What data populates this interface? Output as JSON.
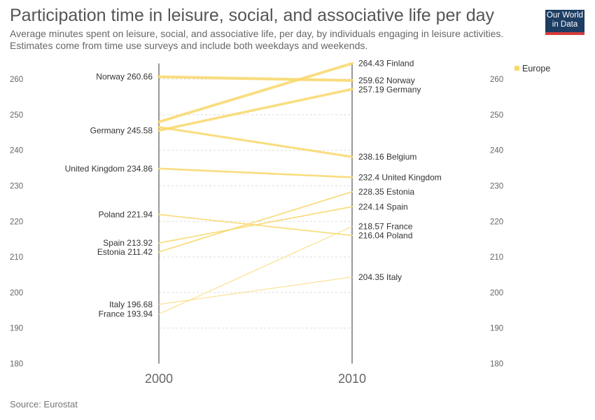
{
  "header": {
    "title": "Participation time in leisure, social, and associative life per day",
    "subtitle_line1": "Average minutes spent on leisure, social, and associative life, per day, by individuals engaging in leisure activities.",
    "subtitle_line2": "Estimates come from time use surveys and include both weekdays and weekends.",
    "logo_line1": "Our World",
    "logo_line2": "in Data"
  },
  "footer": {
    "source": "Source: Eurostat"
  },
  "colors": {
    "europe": "#f9d86a",
    "axis": "#333333",
    "grid": "#dddddd",
    "text": "#555555"
  },
  "chart_data": {
    "type": "slope",
    "x": [
      "2000",
      "2010"
    ],
    "ylim": [
      180,
      264.43
    ],
    "yticks": [
      180,
      190,
      200,
      210,
      220,
      230,
      240,
      250,
      260
    ],
    "legend": {
      "label": "Europe",
      "position": "top-right"
    },
    "series": [
      {
        "name": "Norway",
        "values": [
          260.66,
          259.62
        ]
      },
      {
        "name": "Germany",
        "values": [
          245.58,
          257.19
        ]
      },
      {
        "name": "United Kingdom",
        "values": [
          234.86,
          232.4
        ]
      },
      {
        "name": "Poland",
        "values": [
          221.94,
          216.04
        ]
      },
      {
        "name": "Spain",
        "values": [
          213.92,
          224.14
        ]
      },
      {
        "name": "Estonia",
        "values": [
          211.42,
          228.35
        ]
      },
      {
        "name": "Italy",
        "values": [
          196.68,
          204.35
        ]
      },
      {
        "name": "France",
        "values": [
          193.94,
          218.57
        ]
      },
      {
        "name": "Finland",
        "values": [
          248.0,
          264.43
        ]
      },
      {
        "name": "Belgium",
        "values": [
          246.5,
          238.16
        ]
      }
    ],
    "left_labels": [
      "Norway",
      "Germany",
      "United Kingdom",
      "Poland",
      "Spain",
      "Estonia",
      "Italy",
      "France"
    ],
    "right_labels": [
      "Finland",
      "Norway",
      "Germany",
      "Belgium",
      "United Kingdom",
      "Estonia",
      "Spain",
      "France",
      "Poland",
      "Italy"
    ]
  }
}
